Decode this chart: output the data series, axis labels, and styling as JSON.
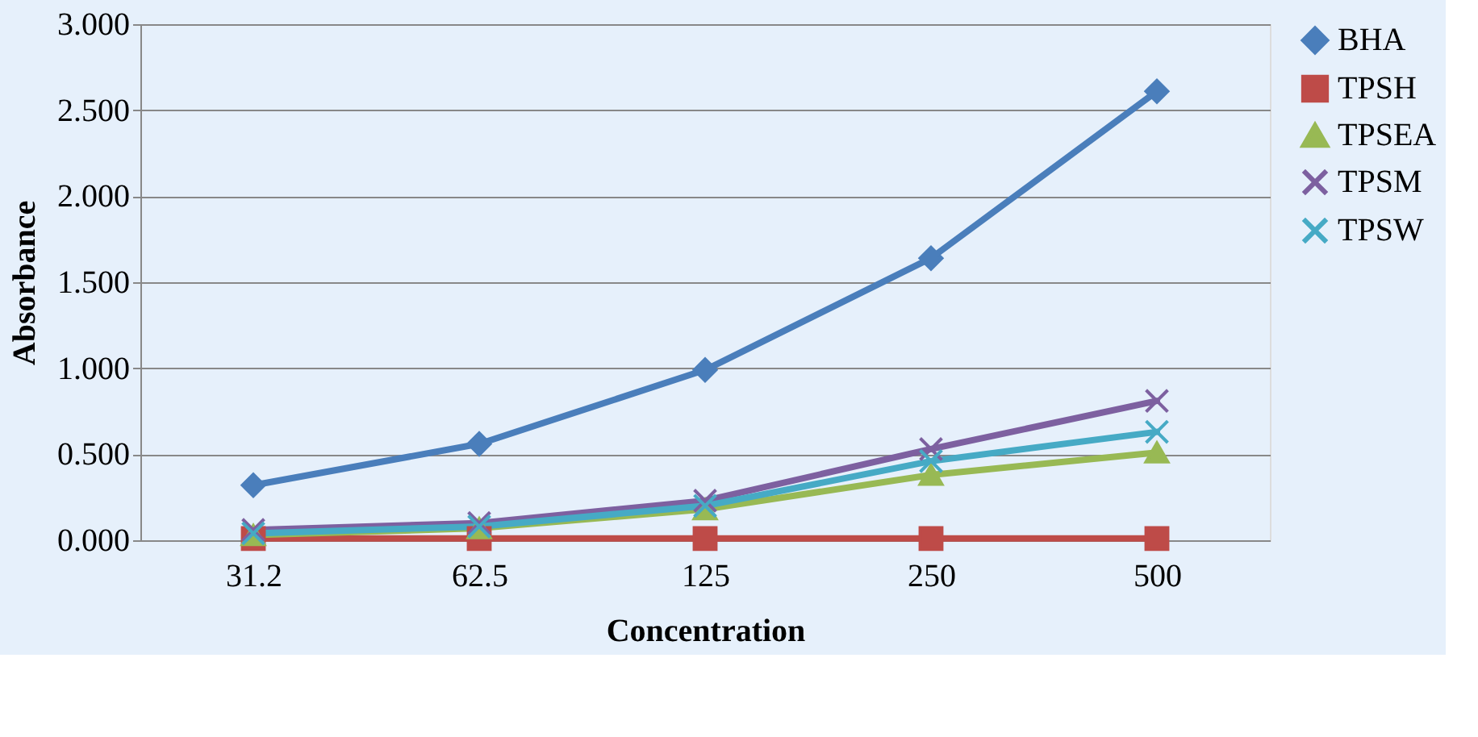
{
  "chart_data": {
    "type": "line",
    "xlabel": "Concentration",
    "ylabel": "Absorbance",
    "categories": [
      "31.2",
      "62.5",
      "125",
      "250",
      "500"
    ],
    "series": [
      {
        "name": "BHA",
        "color": "#4a7ebb",
        "marker": "diamond",
        "values": [
          0.32,
          0.56,
          0.99,
          1.64,
          2.61
        ]
      },
      {
        "name": "TPSH",
        "color": "#be4b48",
        "marker": "square",
        "values": [
          0.01,
          0.01,
          0.01,
          0.01,
          0.01
        ]
      },
      {
        "name": "TPSEA",
        "color": "#98b954",
        "marker": "triangle",
        "values": [
          0.03,
          0.07,
          0.18,
          0.38,
          0.51
        ]
      },
      {
        "name": "TPSM",
        "color": "#7d60a0",
        "marker": "cross",
        "values": [
          0.06,
          0.1,
          0.23,
          0.53,
          0.81
        ]
      },
      {
        "name": "TPSW",
        "color": "#46aac5",
        "marker": "cross",
        "values": [
          0.04,
          0.08,
          0.2,
          0.46,
          0.63
        ]
      }
    ],
    "ylim": [
      0,
      3
    ],
    "yticks": [
      {
        "value": 0,
        "label": "0.000"
      },
      {
        "value": 0.5,
        "label": "0.500"
      },
      {
        "value": 1,
        "label": "1.000"
      },
      {
        "value": 1.5,
        "label": "1.500"
      },
      {
        "value": 2,
        "label": "2.000"
      },
      {
        "value": 2.5,
        "label": "2.500"
      },
      {
        "value": 3,
        "label": "3.000"
      }
    ],
    "grid": "y",
    "legend": "right",
    "line_style": "solid"
  }
}
